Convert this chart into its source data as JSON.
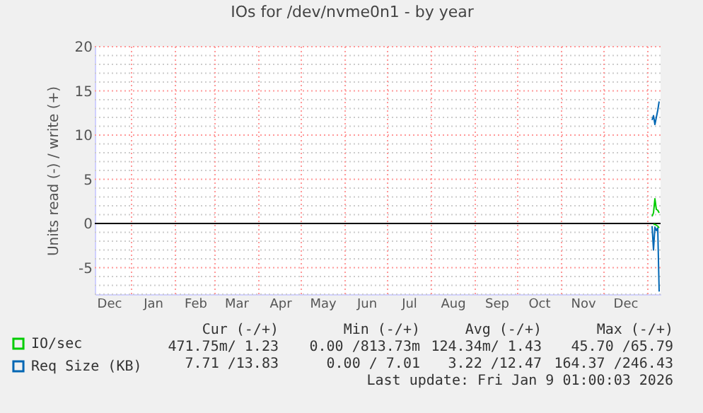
{
  "chart_data": {
    "type": "line",
    "title": "IOs for /dev/nvme0n1 - by year",
    "ylabel": "Units read (-) / write (+)",
    "xlim": [
      "2024-12-06",
      "2026-01-10"
    ],
    "ylim": [
      -8,
      20
    ],
    "xticks": [
      {
        "value": "2024-12-16",
        "label": "Dec"
      },
      {
        "value": "2025-01-01",
        "label": null
      },
      {
        "value": "2025-01-16",
        "label": "Jan"
      },
      {
        "value": "2025-02-01",
        "label": null
      },
      {
        "value": "2025-02-15",
        "label": "Feb"
      },
      {
        "value": "2025-03-01",
        "label": null
      },
      {
        "value": "2025-03-16",
        "label": "Mar"
      },
      {
        "value": "2025-04-01",
        "label": null
      },
      {
        "value": "2025-04-16",
        "label": "Apr"
      },
      {
        "value": "2025-05-01",
        "label": null
      },
      {
        "value": "2025-05-16",
        "label": "May"
      },
      {
        "value": "2025-06-01",
        "label": null
      },
      {
        "value": "2025-06-16",
        "label": "Jun"
      },
      {
        "value": "2025-07-01",
        "label": null
      },
      {
        "value": "2025-07-16",
        "label": "Jul"
      },
      {
        "value": "2025-08-01",
        "label": null
      },
      {
        "value": "2025-08-16",
        "label": "Aug"
      },
      {
        "value": "2025-09-01",
        "label": null
      },
      {
        "value": "2025-09-16",
        "label": "Sep"
      },
      {
        "value": "2025-10-01",
        "label": null
      },
      {
        "value": "2025-10-16",
        "label": "Oct"
      },
      {
        "value": "2025-11-01",
        "label": null
      },
      {
        "value": "2025-11-16",
        "label": "Nov"
      },
      {
        "value": "2025-12-01",
        "label": null
      },
      {
        "value": "2025-12-16",
        "label": "Dec"
      },
      {
        "value": "2026-01-01",
        "label": null
      }
    ],
    "yticks": [
      {
        "value": -8,
        "label": null
      },
      {
        "value": -7,
        "label": null
      },
      {
        "value": -6,
        "label": null
      },
      -5,
      {
        "value": -4,
        "label": null
      },
      {
        "value": -3,
        "label": null
      },
      {
        "value": -2,
        "label": null
      },
      {
        "value": -1,
        "label": null
      },
      0,
      {
        "value": 1,
        "label": null
      },
      {
        "value": 2,
        "label": null
      },
      {
        "value": 3,
        "label": null
      },
      {
        "value": 4,
        "label": null
      },
      5,
      {
        "value": 6,
        "label": null
      },
      {
        "value": 7,
        "label": null
      },
      {
        "value": 8,
        "label": null
      },
      {
        "value": 9,
        "label": null
      },
      10,
      {
        "value": 11,
        "label": null
      },
      {
        "value": 12,
        "label": null
      },
      {
        "value": 13,
        "label": null
      },
      {
        "value": 14,
        "label": null
      },
      15,
      {
        "value": 16,
        "label": null
      },
      {
        "value": 17,
        "label": null
      },
      {
        "value": 18,
        "label": null
      },
      {
        "value": 19,
        "label": null
      },
      20
    ],
    "grid": true,
    "legend": "bottom left",
    "series": [
      {
        "name": "IO/sec",
        "color": "#00cc00",
        "x": [
          "2026-01-04",
          "2026-01-05",
          "2026-01-06",
          "2026-01-07",
          "2026-01-08",
          "2026-01-09"
        ],
        "values": [
          0.8,
          1.2,
          2.8,
          1.6,
          1.5,
          1.2
        ]
      },
      {
        "name": "Req Size (KB)",
        "color": "#0066b3",
        "x": [
          "2026-01-04",
          "2026-01-05",
          "2026-01-06",
          "2026-01-07",
          "2026-01-08",
          "2026-01-09"
        ],
        "values": [
          11.7,
          12.2,
          11.2,
          12.0,
          12.8,
          13.8
        ]
      },
      {
        "color": "#0067b4",
        "x": [
          "2026-01-04",
          "2026-01-05",
          "2026-01-06",
          "2026-01-07",
          "2026-01-08",
          "2026-01-09"
        ],
        "values": [
          -0.3,
          -3.0,
          -0.4,
          -0.8,
          -0.5,
          -7.7
        ]
      },
      {
        "color": "#01cd01",
        "x": [
          "2026-01-05",
          "2026-01-06",
          "2026-01-07",
          "2026-01-08",
          "2026-01-09"
        ],
        "values": [
          -0.1,
          -0.1,
          -0.2,
          -0.3,
          -0.5
        ]
      }
    ],
    "ref_lines": [
      {
        "axis": "y",
        "value": 0,
        "color": "#000000"
      }
    ],
    "annotations": [
      "Cur (-/+)",
      "Min (-/+)",
      "Avg (-/+)",
      "Max (-/+)",
      "471.75m/ 1.23",
      "0.00 /813.73m",
      "124.34m/ 1.43",
      "45.70 /65.79",
      "7.71 /13.83",
      "0.00 / 7.01",
      "3.22 /12.47",
      "164.37 /246.43",
      "Last update: Fri Jan  9 01:00:03 2026"
    ]
  }
}
